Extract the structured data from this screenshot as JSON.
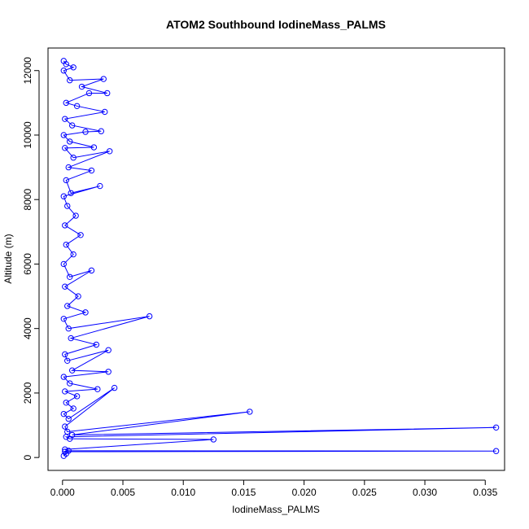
{
  "chart_data": {
    "type": "line",
    "title": "ATOM2 Southbound IodineMass_PALMS",
    "xlabel": "IodineMass_PALMS",
    "ylabel": "Altitude (m)",
    "xlim": [
      -0.0012,
      0.0366
    ],
    "ylim": [
      -400,
      12700
    ],
    "x_ticks": [
      0.0,
      0.005,
      0.01,
      0.015,
      0.02,
      0.025,
      0.03,
      0.035
    ],
    "x_tick_labels": [
      "0.000",
      "0.005",
      "0.010",
      "0.015",
      "0.020",
      "0.025",
      "0.030",
      "0.035"
    ],
    "y_ticks": [
      0,
      2000,
      4000,
      6000,
      8000,
      10000,
      12000
    ],
    "y_tick_labels": [
      "0",
      "2000",
      "4000",
      "6000",
      "8000",
      "10000",
      "12000"
    ],
    "grid": false,
    "series": [
      {
        "marker": "open-circle",
        "line": true,
        "color": "#0000ff",
        "points": [
          [
            0.0001,
            50
          ],
          [
            0.0003,
            120
          ],
          [
            0.0002,
            180
          ],
          [
            0.0359,
            200
          ],
          [
            0.0005,
            210
          ],
          [
            0.0002,
            250
          ],
          [
            0.0125,
            560
          ],
          [
            0.0006,
            580
          ],
          [
            0.0003,
            640
          ],
          [
            0.0359,
            930
          ],
          [
            0.0008,
            700
          ],
          [
            0.0155,
            1420
          ],
          [
            0.0004,
            800
          ],
          [
            0.0002,
            960
          ],
          [
            0.0043,
            2160
          ],
          [
            0.0005,
            1200
          ],
          [
            0.0001,
            1350
          ],
          [
            0.0009,
            1520
          ],
          [
            0.0003,
            1700
          ],
          [
            0.0012,
            1900
          ],
          [
            0.0002,
            2050
          ],
          [
            0.0029,
            2120
          ],
          [
            0.0006,
            2300
          ],
          [
            0.0001,
            2500
          ],
          [
            0.0038,
            2660
          ],
          [
            0.0008,
            2700
          ],
          [
            0.0038,
            3330
          ],
          [
            0.0004,
            3000
          ],
          [
            0.0002,
            3200
          ],
          [
            0.0028,
            3500
          ],
          [
            0.0007,
            3700
          ],
          [
            0.0072,
            4380
          ],
          [
            0.0005,
            4000
          ],
          [
            0.0001,
            4300
          ],
          [
            0.0019,
            4500
          ],
          [
            0.0004,
            4700
          ],
          [
            0.0013,
            5000
          ],
          [
            0.0002,
            5300
          ],
          [
            0.0024,
            5800
          ],
          [
            0.0006,
            5600
          ],
          [
            0.0001,
            6000
          ],
          [
            0.0009,
            6300
          ],
          [
            0.0003,
            6600
          ],
          [
            0.0015,
            6900
          ],
          [
            0.0002,
            7200
          ],
          [
            0.0011,
            7500
          ],
          [
            0.0004,
            7800
          ],
          [
            0.0001,
            8100
          ],
          [
            0.0031,
            8420
          ],
          [
            0.0007,
            8200
          ],
          [
            0.0003,
            8600
          ],
          [
            0.0024,
            8900
          ],
          [
            0.0005,
            9000
          ],
          [
            0.0039,
            9500
          ],
          [
            0.0009,
            9300
          ],
          [
            0.0002,
            9600
          ],
          [
            0.0026,
            9620
          ],
          [
            0.0006,
            9800
          ],
          [
            0.0001,
            10000
          ],
          [
            0.0019,
            10100
          ],
          [
            0.0032,
            10120
          ],
          [
            0.0008,
            10300
          ],
          [
            0.0002,
            10500
          ],
          [
            0.0035,
            10720
          ],
          [
            0.0012,
            10900
          ],
          [
            0.0003,
            11000
          ],
          [
            0.0022,
            11300
          ],
          [
            0.0037,
            11300
          ],
          [
            0.0016,
            11500
          ],
          [
            0.0034,
            11740
          ],
          [
            0.0006,
            11700
          ],
          [
            0.0001,
            12000
          ],
          [
            0.0009,
            12100
          ],
          [
            0.0003,
            12200
          ],
          [
            0.0001,
            12300
          ]
        ]
      }
    ]
  }
}
